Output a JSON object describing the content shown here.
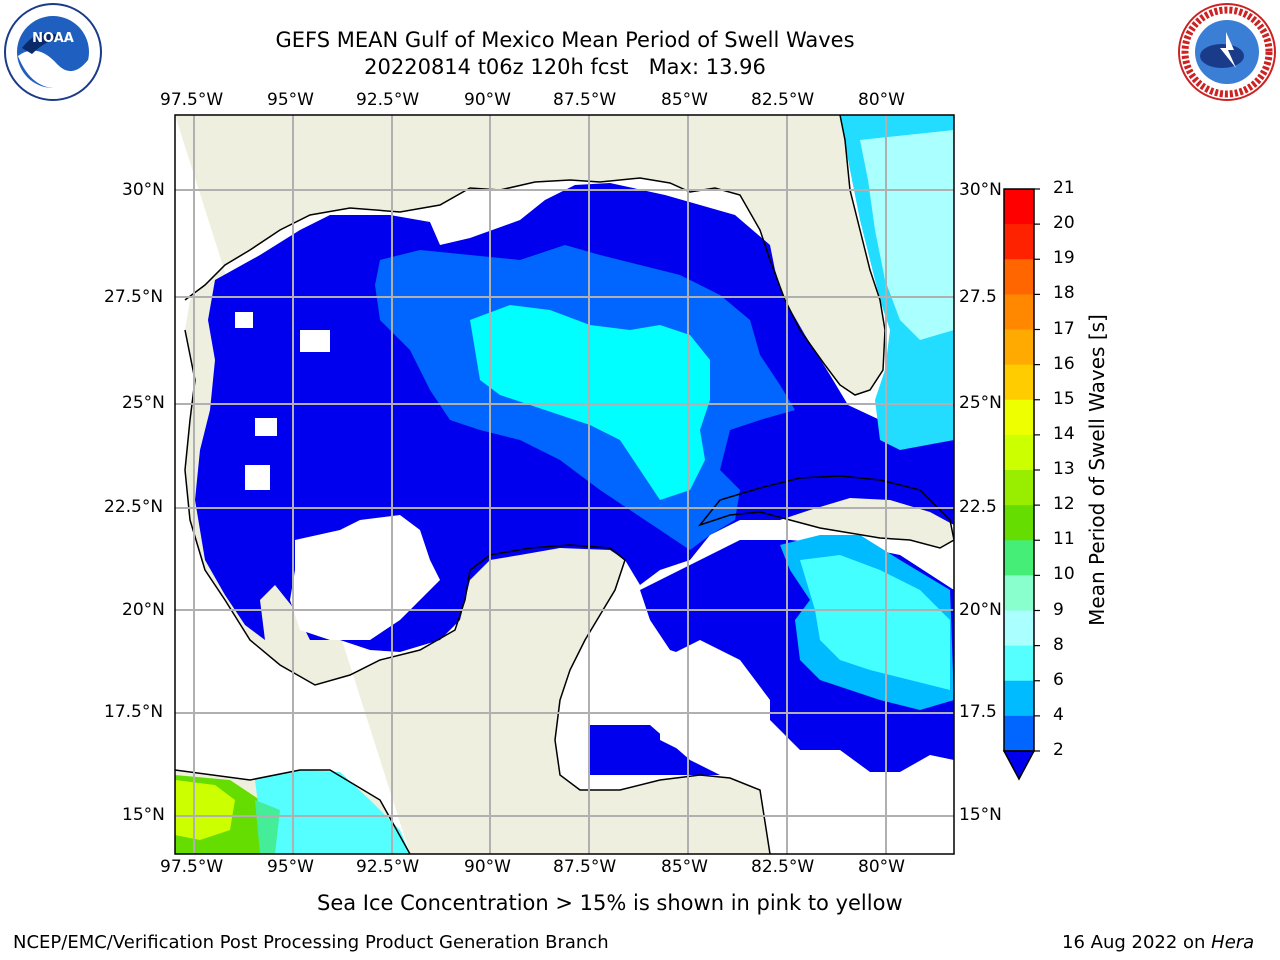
{
  "header": {
    "title_line1": "GEFS MEAN Gulf of Mexico Mean Period of Swell Waves",
    "title_line2": "20220814 t06z 120h fcst   Max: 13.96"
  },
  "logos": {
    "left": "NOAA",
    "right": "NATIONAL WEATHER SERVICE"
  },
  "map": {
    "lon_ticks": [
      "97.5°W",
      "95°W",
      "92.5°W",
      "90°W",
      "87.5°W",
      "85°W",
      "82.5°W",
      "80°W"
    ],
    "lat_ticks_left": [
      "30°N",
      "27.5°N",
      "25°N",
      "22.5°N",
      "20°N",
      "17.5°N",
      "15°N"
    ],
    "lat_ticks_right": [
      "30°N",
      "27.5",
      "25°N",
      "22.5",
      "20°N",
      "17.5",
      "15°N"
    ]
  },
  "colorbar": {
    "label": "Mean Period of Swell Waves [s]",
    "ticks": [
      "21",
      "20",
      "19",
      "18",
      "17",
      "16",
      "15",
      "14",
      "13",
      "12",
      "11",
      "10",
      "9",
      "8",
      "6",
      "4",
      "2"
    ],
    "colors": [
      "#ff0000",
      "#ff2200",
      "#ff4400",
      "#ff6600",
      "#ff8800",
      "#ffaa00",
      "#ffcc00",
      "#ffee00",
      "#eeff00",
      "#ccff00",
      "#99ee00",
      "#66dd00",
      "#00dd00",
      "#44ee77",
      "#88ffcc",
      "#aaffff",
      "#55ffff",
      "#00ffff",
      "#00bbff",
      "#0066ff"
    ]
  },
  "footer": {
    "note": "Sea Ice Concentration > 15% is shown in pink to yellow",
    "left": "NCEP/EMC/Verification Post Processing Product Generation Branch",
    "date": "16 Aug 2022 on ",
    "machine": "Hera"
  }
}
